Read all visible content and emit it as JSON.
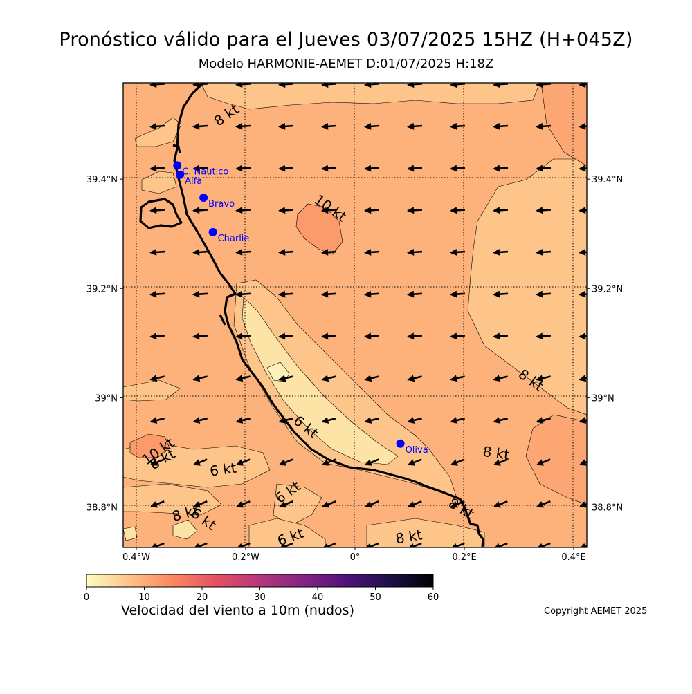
{
  "header": {
    "title": "Pronóstico válido para el Jueves 03/07/2025 15HZ (H+045Z)",
    "subtitle": "Modelo HARMONIE-AEMET D:01/07/2025 H:18Z"
  },
  "map": {
    "lon_range": [
      -0.424,
      0.424
    ],
    "lat_range": [
      38.726,
      39.576
    ],
    "x_ticks": [
      {
        "lon": -0.4,
        "label": "0.4°W"
      },
      {
        "lon": -0.2,
        "label": "0.2°W"
      },
      {
        "lon": 0.0,
        "label": "0°"
      },
      {
        "lon": 0.2,
        "label": "0.2°E"
      },
      {
        "lon": 0.4,
        "label": "0.4°E"
      }
    ],
    "y_ticks": [
      {
        "lat": 39.4,
        "label": "39.4°N"
      },
      {
        "lat": 39.2,
        "label": "39.2°N"
      },
      {
        "lat": 39.0,
        "label": "39°N"
      },
      {
        "lat": 38.8,
        "label": "38.8°N"
      }
    ],
    "stations": [
      {
        "name": "C. Nautico",
        "lon": -0.325,
        "lat": 39.425
      },
      {
        "name": "Alfa",
        "lon": -0.32,
        "lat": 39.408
      },
      {
        "name": "Bravo",
        "lon": -0.277,
        "lat": 39.366
      },
      {
        "name": "Charlie",
        "lon": -0.26,
        "lat": 39.303
      },
      {
        "name": "Oliva",
        "lon": 0.083,
        "lat": 38.916
      }
    ],
    "contour_labels": [
      {
        "text": "8 kt",
        "lon": -0.23,
        "lat": 39.51
      },
      {
        "text": "10 kt",
        "lon": -0.05,
        "lat": 39.34
      },
      {
        "text": "8 kt",
        "lon": 0.317,
        "lat": 39.025
      },
      {
        "text": "6 kt",
        "lon": -0.095,
        "lat": 38.94
      },
      {
        "text": "8 kt",
        "lon": 0.257,
        "lat": 38.89
      },
      {
        "text": "10 kt",
        "lon": -0.355,
        "lat": 38.895
      },
      {
        "text": "8 kt",
        "lon": -0.348,
        "lat": 38.88
      },
      {
        "text": "6 kt",
        "lon": -0.24,
        "lat": 38.86
      },
      {
        "text": "6 kt",
        "lon": -0.118,
        "lat": 38.82
      },
      {
        "text": "8 kt",
        "lon": -0.308,
        "lat": 38.78
      },
      {
        "text": "6 kt",
        "lon": -0.282,
        "lat": 38.771
      },
      {
        "text": "8 kt",
        "lon": 0.19,
        "lat": 38.79
      },
      {
        "text": "6 kt",
        "lon": -0.115,
        "lat": 38.737
      },
      {
        "text": "8 kt",
        "lon": 0.1,
        "lat": 38.737
      }
    ]
  },
  "colorbar": {
    "min": 0,
    "max": 60,
    "ticks": [
      0,
      10,
      20,
      30,
      40,
      50,
      60
    ],
    "label": "Velocidad del viento a 10m (nudos)",
    "colors": [
      "#fcfdbf",
      "#fec287",
      "#fb8761",
      "#e55064",
      "#b5367a",
      "#832681",
      "#51127c",
      "#1d1147",
      "#000004"
    ]
  },
  "footer": {
    "copyright": "Copyright AEMET 2025"
  }
}
